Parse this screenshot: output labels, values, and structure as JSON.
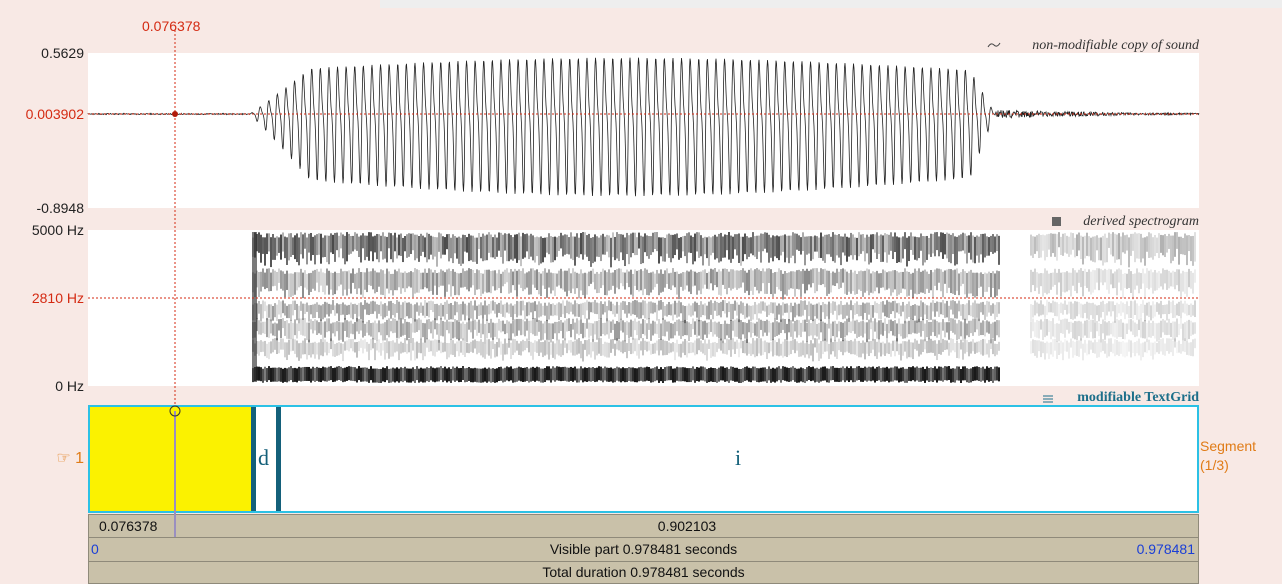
{
  "cursor": {
    "time": "0.076378"
  },
  "sound": {
    "title": "non-modifiable copy of sound",
    "ymax": "0.5629",
    "cursor_value": "0.003902",
    "ymin": "-0.8948"
  },
  "spectrogram": {
    "title": "derived spectrogram",
    "fmax": "5000 Hz",
    "cursor_freq": "2810 Hz",
    "fmin": "0 Hz"
  },
  "textgrid": {
    "title": "modifiable TextGrid",
    "tier_label": "☞ 1",
    "tier_name": "Segment",
    "tier_count": "(1/3)",
    "intervals": [
      "d",
      "i"
    ]
  },
  "bottom": {
    "left_duration": "0.076378",
    "right_duration": "0.902103",
    "visible_start": "0",
    "visible_part": "Visible part 0.978481 seconds",
    "visible_end": "0.978481",
    "total": "Total duration 0.978481 seconds"
  }
}
